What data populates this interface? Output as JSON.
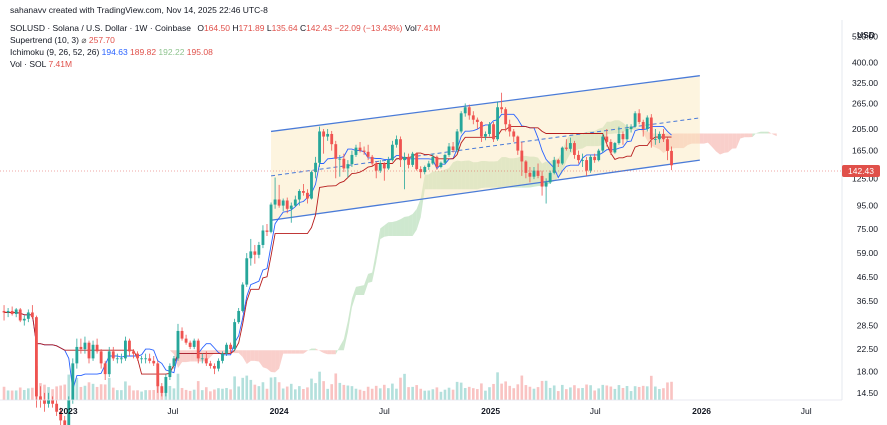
{
  "attribution": "sahanavv created with TradingView.com, Nov 14, 2025 22:46 UTC-8",
  "symbol": "SOLUSD · Solana / U.S. Dollar · 1W · Coinbase",
  "ohlc": {
    "o_label": "O",
    "o": "164.50",
    "h_label": "H",
    "h": "171.89",
    "l_label": "L",
    "l": "135.64",
    "c_label": "C",
    "c": "142.43",
    "chg": "−22.09 (−13.43%)",
    "vol_label": "Vol",
    "vol": "7.41M"
  },
  "indicators": {
    "supertrend": {
      "label": "Supertrend (10, 3)",
      "value": "257.70"
    },
    "ichimoku": {
      "label": "Ichimoku (9, 26, 52, 26)",
      "v1": "194.63",
      "v2": "189.82",
      "v3": "192.22",
      "v4": "195.08"
    },
    "volume": {
      "label": "Vol · SOL",
      "value": "7.41M"
    }
  },
  "axis_unit": "USD",
  "current_price_label": "142.43",
  "colors": {
    "up": "#26a69a",
    "down": "#ef5350",
    "channel": "#4a7bd8",
    "bull_cloud": "#a5d6a7",
    "bear_cloud": "#f4a8a0"
  },
  "chart_data": {
    "type": "candlestick",
    "y_scale": "log",
    "y_ticks": [
      14.5,
      18.0,
      22.5,
      28.5,
      36.5,
      46.5,
      59.0,
      75.0,
      95.0,
      125.0,
      165.0,
      205.0,
      265.0,
      325.0,
      400.0,
      520.0
    ],
    "y_tick_labels": [
      "14.50",
      "18.00",
      "22.50",
      "28.50",
      "36.50",
      "46.50",
      "59.00",
      "75.00",
      "95.00",
      "125.00",
      "165.00",
      "205.00",
      "265.00",
      "325.00",
      "400.00",
      "520.00"
    ],
    "x_ticks": [
      "2023",
      "Jul",
      "2024",
      "Jul",
      "2025",
      "Jul",
      "2026",
      "Jul"
    ],
    "x_ticks_bold": [
      true,
      false,
      true,
      false,
      true,
      false,
      true,
      false
    ],
    "x_tick_dates": [
      "2023-01-01",
      "2023-07-01",
      "2024-01-01",
      "2024-07-01",
      "2025-01-01",
      "2025-07-01",
      "2026-01-01",
      "2026-07-01"
    ],
    "x_range": [
      "2022-09-05",
      "2026-09-01"
    ],
    "y_range": [
      13.5,
      600
    ],
    "last_price": 142.43,
    "candles": [
      [
        "2022-09-12",
        33.0,
        35.0,
        30.0,
        32.5
      ],
      [
        "2022-09-19",
        32.5,
        34.0,
        31.0,
        33.0
      ],
      [
        "2022-09-26",
        33.0,
        34.5,
        31.5,
        32.0
      ],
      [
        "2022-10-03",
        32.0,
        34.0,
        31.0,
        33.5
      ],
      [
        "2022-10-10",
        33.5,
        34.0,
        29.5,
        30.0
      ],
      [
        "2022-10-17",
        30.0,
        31.5,
        28.5,
        30.5
      ],
      [
        "2022-10-24",
        30.5,
        33.5,
        29.5,
        32.5
      ],
      [
        "2022-10-31",
        32.5,
        35.0,
        30.5,
        31.0
      ],
      [
        "2022-11-07",
        31.0,
        31.5,
        12.5,
        14.0
      ],
      [
        "2022-11-14",
        14.0,
        15.5,
        12.5,
        13.5
      ],
      [
        "2022-11-21",
        13.5,
        14.5,
        12.0,
        13.0
      ],
      [
        "2022-11-28",
        13.0,
        14.5,
        12.5,
        13.5
      ],
      [
        "2022-12-05",
        13.5,
        14.0,
        12.5,
        13.0
      ],
      [
        "2022-12-12",
        13.0,
        13.5,
        11.5,
        12.0
      ],
      [
        "2022-12-19",
        12.0,
        12.5,
        10.5,
        11.0
      ],
      [
        "2022-12-26",
        11.0,
        11.5,
        9.5,
        10.0
      ],
      [
        "2023-01-02",
        10.0,
        14.0,
        9.8,
        13.5
      ],
      [
        "2023-01-09",
        13.5,
        20.5,
        13.0,
        19.5
      ],
      [
        "2023-01-16",
        19.5,
        25.0,
        18.5,
        23.0
      ],
      [
        "2023-01-23",
        23.0,
        25.0,
        21.5,
        22.5
      ],
      [
        "2023-01-30",
        22.5,
        25.5,
        21.5,
        24.0
      ],
      [
        "2023-02-06",
        24.0,
        24.5,
        19.5,
        20.5
      ],
      [
        "2023-02-13",
        20.5,
        24.5,
        20.0,
        23.5
      ],
      [
        "2023-02-20",
        23.5,
        25.0,
        21.5,
        22.0
      ],
      [
        "2023-02-27",
        22.0,
        22.5,
        18.5,
        19.5
      ],
      [
        "2023-03-06",
        19.5,
        20.0,
        16.5,
        17.5
      ],
      [
        "2023-03-13",
        17.5,
        23.0,
        17.0,
        22.0
      ],
      [
        "2023-03-20",
        22.0,
        23.0,
        20.0,
        20.5
      ],
      [
        "2023-03-27",
        20.5,
        21.5,
        19.5,
        20.5
      ],
      [
        "2023-04-03",
        20.5,
        21.5,
        19.5,
        20.5
      ],
      [
        "2023-04-10",
        20.5,
        25.5,
        20.0,
        24.5
      ],
      [
        "2023-04-17",
        24.5,
        25.0,
        21.0,
        22.0
      ],
      [
        "2023-04-24",
        22.0,
        22.5,
        20.5,
        21.5
      ],
      [
        "2023-05-01",
        21.5,
        22.0,
        20.0,
        20.5
      ],
      [
        "2023-05-08",
        20.5,
        21.0,
        19.5,
        20.5
      ],
      [
        "2023-05-15",
        20.5,
        21.5,
        19.5,
        20.5
      ],
      [
        "2023-05-22",
        20.5,
        21.5,
        19.5,
        20.0
      ],
      [
        "2023-05-29",
        20.0,
        21.0,
        19.0,
        19.5
      ],
      [
        "2023-06-05",
        19.5,
        20.0,
        14.5,
        15.5
      ],
      [
        "2023-06-12",
        15.5,
        16.0,
        14.0,
        14.5
      ],
      [
        "2023-06-19",
        14.5,
        17.5,
        14.0,
        17.0
      ],
      [
        "2023-06-26",
        17.0,
        19.5,
        16.5,
        19.0
      ],
      [
        "2023-07-03",
        19.0,
        21.0,
        18.5,
        20.5
      ],
      [
        "2023-07-10",
        20.5,
        29.0,
        20.0,
        27.0
      ],
      [
        "2023-07-17",
        27.0,
        28.0,
        24.5,
        25.0
      ],
      [
        "2023-07-24",
        25.0,
        26.0,
        23.5,
        24.0
      ],
      [
        "2023-07-31",
        24.0,
        24.5,
        22.5,
        23.0
      ],
      [
        "2023-08-07",
        23.0,
        25.0,
        22.5,
        24.5
      ],
      [
        "2023-08-14",
        24.5,
        25.0,
        19.5,
        20.5
      ],
      [
        "2023-08-21",
        20.5,
        21.5,
        19.5,
        20.5
      ],
      [
        "2023-08-28",
        20.5,
        22.0,
        19.0,
        19.5
      ],
      [
        "2023-09-04",
        19.5,
        20.0,
        18.5,
        19.0
      ],
      [
        "2023-09-11",
        19.0,
        19.5,
        17.5,
        18.5
      ],
      [
        "2023-09-18",
        18.5,
        20.5,
        18.0,
        20.0
      ],
      [
        "2023-09-25",
        20.0,
        22.0,
        19.5,
        21.5
      ],
      [
        "2023-10-02",
        21.5,
        24.0,
        21.0,
        23.5
      ],
      [
        "2023-10-09",
        23.5,
        24.0,
        21.5,
        22.5
      ],
      [
        "2023-10-16",
        22.5,
        30.5,
        22.0,
        29.5
      ],
      [
        "2023-10-23",
        29.5,
        34.0,
        29.0,
        33.0
      ],
      [
        "2023-10-30",
        33.0,
        44.0,
        32.5,
        43.0
      ],
      [
        "2023-11-06",
        43.0,
        59.0,
        42.0,
        56.0
      ],
      [
        "2023-11-13",
        56.0,
        68.0,
        52.0,
        60.0
      ],
      [
        "2023-11-20",
        60.0,
        64.0,
        53.0,
        58.0
      ],
      [
        "2023-11-27",
        58.0,
        66.0,
        56.0,
        64.0
      ],
      [
        "2023-12-04",
        64.0,
        78.0,
        62.0,
        74.0
      ],
      [
        "2023-12-11",
        74.0,
        79.0,
        70.0,
        73.0
      ],
      [
        "2023-12-18",
        73.0,
        98.0,
        72.0,
        96.0
      ],
      [
        "2023-12-25",
        96.0,
        126.0,
        92.0,
        101.0
      ],
      [
        "2024-01-01",
        101.0,
        117.0,
        93.0,
        95.0
      ],
      [
        "2024-01-08",
        95.0,
        102.0,
        90.0,
        100.0
      ],
      [
        "2024-01-15",
        100.0,
        103.0,
        88.0,
        92.0
      ],
      [
        "2024-01-22",
        92.0,
        98.0,
        80.0,
        95.0
      ],
      [
        "2024-01-29",
        95.0,
        105.0,
        94.0,
        101.0
      ],
      [
        "2024-02-05",
        101.0,
        112.0,
        95.0,
        110.0
      ],
      [
        "2024-02-12",
        110.0,
        118.0,
        105.0,
        108.0
      ],
      [
        "2024-02-19",
        108.0,
        112.0,
        97.0,
        102.0
      ],
      [
        "2024-02-26",
        102.0,
        135.0,
        101.0,
        133.0
      ],
      [
        "2024-03-04",
        133.0,
        155.0,
        125.0,
        146.0
      ],
      [
        "2024-03-11",
        146.0,
        210.0,
        140.0,
        200.0
      ],
      [
        "2024-03-18",
        200.0,
        205.0,
        160.0,
        190.0
      ],
      [
        "2024-03-25",
        190.0,
        205.0,
        182.0,
        195.0
      ],
      [
        "2024-04-01",
        195.0,
        201.0,
        165.0,
        176.0
      ],
      [
        "2024-04-08",
        176.0,
        182.0,
        125.0,
        152.0
      ],
      [
        "2024-04-15",
        152.0,
        158.0,
        127.0,
        152.0
      ],
      [
        "2024-04-22",
        152.0,
        160.0,
        133.0,
        138.0
      ],
      [
        "2024-04-29",
        138.0,
        150.0,
        126.0,
        144.0
      ],
      [
        "2024-05-06",
        144.0,
        165.0,
        140.0,
        158.0
      ],
      [
        "2024-05-13",
        158.0,
        175.0,
        155.0,
        170.0
      ],
      [
        "2024-05-20",
        170.0,
        180.0,
        162.0,
        165.0
      ],
      [
        "2024-05-27",
        165.0,
        172.0,
        158.0,
        163.0
      ],
      [
        "2024-06-03",
        163.0,
        175.0,
        150.0,
        155.0
      ],
      [
        "2024-06-10",
        155.0,
        158.0,
        140.0,
        145.0
      ],
      [
        "2024-06-17",
        145.0,
        148.0,
        125.0,
        135.0
      ],
      [
        "2024-06-24",
        135.0,
        150.0,
        132.0,
        145.0
      ],
      [
        "2024-07-01",
        145.0,
        147.0,
        122.0,
        138.0
      ],
      [
        "2024-07-08",
        138.0,
        155.0,
        136.0,
        150.0
      ],
      [
        "2024-07-15",
        150.0,
        182.0,
        148.0,
        175.0
      ],
      [
        "2024-07-22",
        175.0,
        192.0,
        170.0,
        185.0
      ],
      [
        "2024-07-29",
        185.0,
        190.0,
        140.0,
        150.0
      ],
      [
        "2024-08-05",
        150.0,
        162.0,
        112.0,
        155.0
      ],
      [
        "2024-08-12",
        155.0,
        160.0,
        138.0,
        143.0
      ],
      [
        "2024-08-19",
        143.0,
        163.0,
        140.0,
        160.0
      ],
      [
        "2024-08-26",
        160.0,
        162.0,
        135.0,
        137.0
      ],
      [
        "2024-09-02",
        137.0,
        141.0,
        125.0,
        133.0
      ],
      [
        "2024-09-09",
        133.0,
        142.0,
        130.0,
        140.0
      ],
      [
        "2024-09-16",
        140.0,
        149.0,
        136.0,
        145.0
      ],
      [
        "2024-09-23",
        145.0,
        160.0,
        143.0,
        155.0
      ],
      [
        "2024-09-30",
        155.0,
        157.0,
        136.0,
        140.0
      ],
      [
        "2024-10-07",
        140.0,
        148.0,
        138.0,
        146.0
      ],
      [
        "2024-10-14",
        146.0,
        160.0,
        144.0,
        158.0
      ],
      [
        "2024-10-21",
        158.0,
        178.0,
        155.0,
        172.0
      ],
      [
        "2024-10-28",
        172.0,
        180.0,
        162.0,
        166.0
      ],
      [
        "2024-11-04",
        166.0,
        205.0,
        162.0,
        200.0
      ],
      [
        "2024-11-11",
        200.0,
        245.0,
        196.0,
        240.0
      ],
      [
        "2024-11-18",
        240.0,
        265.0,
        232.0,
        255.0
      ],
      [
        "2024-11-25",
        255.0,
        262.0,
        225.0,
        235.0
      ],
      [
        "2024-12-02",
        235.0,
        245.0,
        215.0,
        225.0
      ],
      [
        "2024-12-09",
        225.0,
        230.0,
        205.0,
        220.0
      ],
      [
        "2024-12-16",
        220.0,
        222.0,
        180.0,
        190.0
      ],
      [
        "2024-12-23",
        190.0,
        200.0,
        183.0,
        195.0
      ],
      [
        "2024-12-30",
        195.0,
        220.0,
        190.0,
        215.0
      ],
      [
        "2025-01-06",
        215.0,
        220.0,
        180.0,
        185.0
      ],
      [
        "2025-01-13",
        185.0,
        270.0,
        182.0,
        255.0
      ],
      [
        "2025-01-20",
        255.0,
        295.0,
        240.0,
        250.0
      ],
      [
        "2025-01-27",
        250.0,
        255.0,
        200.0,
        215.0
      ],
      [
        "2025-02-03",
        215.0,
        225.0,
        190.0,
        200.0
      ],
      [
        "2025-02-10",
        200.0,
        205.0,
        180.0,
        190.0
      ],
      [
        "2025-02-17",
        190.0,
        192.0,
        158.0,
        165.0
      ],
      [
        "2025-02-24",
        165.0,
        180.0,
        128.0,
        148.0
      ],
      [
        "2025-03-03",
        148.0,
        150.0,
        125.0,
        132.0
      ],
      [
        "2025-03-10",
        132.0,
        140.0,
        120.0,
        127.0
      ],
      [
        "2025-03-17",
        127.0,
        140.0,
        124.0,
        135.0
      ],
      [
        "2025-03-24",
        135.0,
        145.0,
        125.0,
        128.0
      ],
      [
        "2025-03-31",
        128.0,
        135.0,
        105.0,
        115.0
      ],
      [
        "2025-04-07",
        115.0,
        125.0,
        97.0,
        120.0
      ],
      [
        "2025-04-14",
        120.0,
        135.0,
        118.0,
        132.0
      ],
      [
        "2025-04-21",
        132.0,
        155.0,
        130.0,
        150.0
      ],
      [
        "2025-04-28",
        150.0,
        152.0,
        140.0,
        145.0
      ],
      [
        "2025-05-05",
        145.0,
        172.0,
        143.0,
        170.0
      ],
      [
        "2025-05-12",
        170.0,
        185.0,
        165.0,
        168.0
      ],
      [
        "2025-05-19",
        168.0,
        188.0,
        163.0,
        178.0
      ],
      [
        "2025-05-26",
        178.0,
        182.0,
        152.0,
        158.0
      ],
      [
        "2025-06-02",
        158.0,
        165.0,
        145.0,
        150.0
      ],
      [
        "2025-06-09",
        150.0,
        160.0,
        140.0,
        150.0
      ],
      [
        "2025-06-16",
        150.0,
        155.0,
        128.0,
        135.0
      ],
      [
        "2025-06-23",
        135.0,
        158.0,
        132.0,
        155.0
      ],
      [
        "2025-06-30",
        155.0,
        160.0,
        146.0,
        150.0
      ],
      [
        "2025-07-07",
        150.0,
        168.0,
        148.0,
        165.0
      ],
      [
        "2025-07-14",
        165.0,
        195.0,
        162.0,
        190.0
      ],
      [
        "2025-07-21",
        190.0,
        205.0,
        172.0,
        180.0
      ],
      [
        "2025-07-28",
        180.0,
        185.0,
        158.0,
        162.0
      ],
      [
        "2025-08-04",
        162.0,
        180.0,
        160.0,
        178.0
      ],
      [
        "2025-08-11",
        178.0,
        210.0,
        175.0,
        195.0
      ],
      [
        "2025-08-18",
        195.0,
        200.0,
        175.0,
        185.0
      ],
      [
        "2025-08-25",
        185.0,
        215.0,
        182.0,
        205.0
      ],
      [
        "2025-09-01",
        205.0,
        215.0,
        198.0,
        210.0
      ],
      [
        "2025-09-08",
        210.0,
        245.0,
        208.0,
        240.0
      ],
      [
        "2025-09-15",
        240.0,
        250.0,
        215.0,
        220.0
      ],
      [
        "2025-09-22",
        220.0,
        225.0,
        190.0,
        205.0
      ],
      [
        "2025-09-29",
        205.0,
        235.0,
        200.0,
        230.0
      ],
      [
        "2025-10-06",
        230.0,
        238.0,
        170.0,
        185.0
      ],
      [
        "2025-10-13",
        185.0,
        205.0,
        175.0,
        185.0
      ],
      [
        "2025-10-20",
        185.0,
        200.0,
        178.0,
        195.0
      ],
      [
        "2025-10-27",
        195.0,
        205.0,
        180.0,
        185.0
      ],
      [
        "2025-11-03",
        185.0,
        188.0,
        150.0,
        164.5
      ],
      [
        "2025-11-10",
        164.5,
        171.89,
        135.64,
        142.43
      ]
    ]
  }
}
